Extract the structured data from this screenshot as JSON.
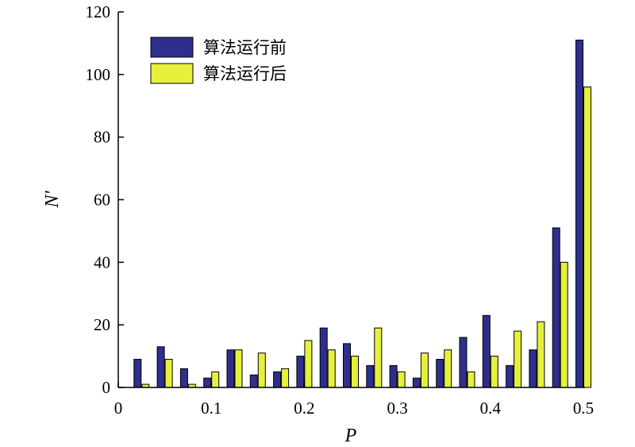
{
  "chart_data": {
    "type": "bar",
    "xlabel": "P",
    "ylabel": "N'",
    "xlim": [
      0,
      0.5
    ],
    "ylim": [
      0,
      120
    ],
    "x_ticks": [
      0,
      0.1,
      0.2,
      0.3,
      0.4,
      0.5
    ],
    "x_tick_labels": [
      "0",
      "0.1",
      "0.2",
      "0.3",
      "0.4",
      "0.5"
    ],
    "y_ticks": [
      0,
      20,
      40,
      60,
      80,
      100,
      120
    ],
    "y_tick_labels": [
      "0",
      "20",
      "40",
      "60",
      "80",
      "100",
      "120"
    ],
    "bin_width": 0.025,
    "bins": [
      0.025,
      0.05,
      0.075,
      0.1,
      0.125,
      0.15,
      0.175,
      0.2,
      0.225,
      0.25,
      0.275,
      0.3,
      0.325,
      0.35,
      0.375,
      0.4,
      0.425,
      0.45,
      0.475,
      0.5
    ],
    "legend_position": "top-left",
    "grid": false,
    "series": [
      {
        "name": "算法运行前",
        "color": "#2e2f8c",
        "values": [
          9,
          13,
          6,
          3,
          12,
          4,
          5,
          10,
          19,
          14,
          7,
          7,
          3,
          9,
          16,
          23,
          7,
          12,
          51,
          111
        ]
      },
      {
        "name": "算法运行后",
        "color": "#e6f03c",
        "values": [
          1,
          9,
          1,
          5,
          12,
          11,
          6,
          15,
          12,
          10,
          19,
          5,
          11,
          12,
          5,
          10,
          18,
          21,
          40,
          96
        ]
      }
    ]
  }
}
